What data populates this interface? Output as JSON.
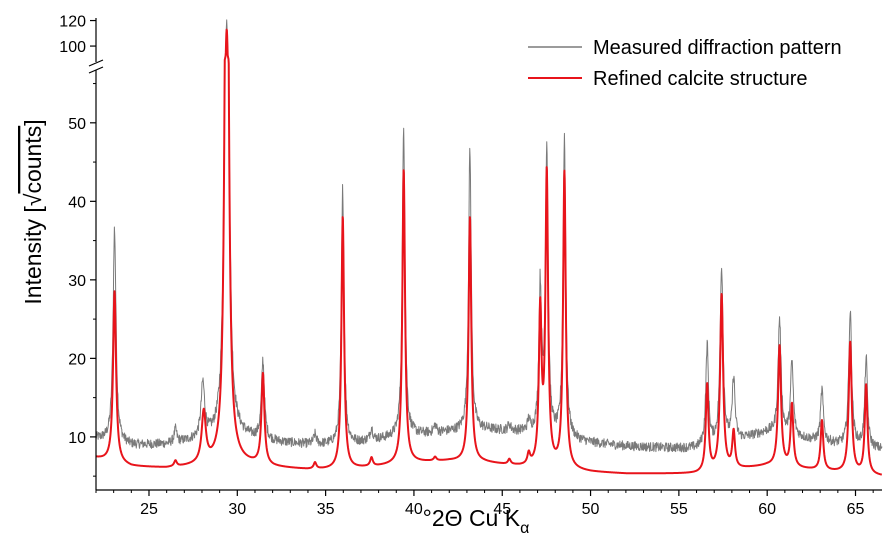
{
  "chart_data": {
    "type": "line",
    "title": "",
    "xlabel": {
      "prefix": "°2Θ Cu K",
      "subscript": "α"
    },
    "ylabel": {
      "prefix": "Intensity [",
      "sqrt": "√",
      "unit": "counts",
      "suffix": "]"
    },
    "xlim": [
      22,
      66.5
    ],
    "ylim": [
      4,
      58
    ],
    "y_break": {
      "upper_range": [
        93,
        122
      ],
      "upper_ticks": [
        100,
        120
      ]
    },
    "x_ticks": [
      25,
      30,
      35,
      40,
      45,
      50,
      55,
      60,
      65
    ],
    "y_ticks": [
      10,
      20,
      30,
      40,
      50
    ],
    "legend": {
      "position": "top-right",
      "entries": [
        "Measured diffraction pattern",
        "Refined calcite structure"
      ]
    },
    "colors": {
      "measured": "#7a7a7a",
      "refined": "#e8141b"
    },
    "baseline": {
      "measured": [
        [
          22,
          9.8
        ],
        [
          24,
          8.9
        ],
        [
          26,
          9.0
        ],
        [
          28,
          9.6
        ],
        [
          30,
          10.0
        ],
        [
          32,
          9.3
        ],
        [
          34,
          9.0
        ],
        [
          36,
          8.9
        ],
        [
          38,
          9.6
        ],
        [
          40,
          10.2
        ],
        [
          42,
          10.6
        ],
        [
          44,
          10.9
        ],
        [
          46,
          10.6
        ],
        [
          48,
          9.8
        ],
        [
          50,
          9.2
        ],
        [
          52,
          8.8
        ],
        [
          54,
          8.6
        ],
        [
          56,
          8.5
        ],
        [
          58,
          9.4
        ],
        [
          60,
          10.6
        ],
        [
          62,
          9.8
        ],
        [
          64,
          9.0
        ],
        [
          66.5,
          8.4
        ]
      ],
      "refined": [
        [
          22,
          7.3
        ],
        [
          24,
          6.2
        ],
        [
          26,
          6.0
        ],
        [
          28,
          6.3
        ],
        [
          30,
          6.7
        ],
        [
          32,
          6.1
        ],
        [
          34,
          5.8
        ],
        [
          36,
          5.8
        ],
        [
          38,
          6.2
        ],
        [
          40,
          6.7
        ],
        [
          42,
          6.9
        ],
        [
          44,
          6.7
        ],
        [
          46,
          6.2
        ],
        [
          48,
          5.9
        ],
        [
          50,
          5.5
        ],
        [
          52,
          5.3
        ],
        [
          54,
          5.3
        ],
        [
          56,
          5.3
        ],
        [
          58,
          5.8
        ],
        [
          60,
          6.3
        ],
        [
          62,
          5.9
        ],
        [
          64,
          5.5
        ],
        [
          66.5,
          5.0
        ]
      ]
    },
    "series": [
      {
        "name": "Measured diffraction pattern",
        "role": "measured",
        "peaks": [
          {
            "x": 23.05,
            "h": 36.5,
            "w": 0.1
          },
          {
            "x": 26.5,
            "h": 10.8,
            "w": 0.09
          },
          {
            "x": 28.05,
            "h": 16.5,
            "w": 0.12
          },
          {
            "x": 29.4,
            "h": 119,
            "w": 0.11
          },
          {
            "x": 31.45,
            "h": 19.5,
            "w": 0.1
          },
          {
            "x": 34.4,
            "h": 10.2,
            "w": 0.09
          },
          {
            "x": 35.97,
            "h": 41.5,
            "w": 0.09
          },
          {
            "x": 37.6,
            "h": 11.0,
            "w": 0.09
          },
          {
            "x": 39.42,
            "h": 49.5,
            "w": 0.09
          },
          {
            "x": 41.2,
            "h": 11.4,
            "w": 0.09
          },
          {
            "x": 43.17,
            "h": 46.5,
            "w": 0.09
          },
          {
            "x": 45.4,
            "h": 11.5,
            "w": 0.09
          },
          {
            "x": 46.5,
            "h": 11.8,
            "w": 0.09
          },
          {
            "x": 47.15,
            "h": 28.5,
            "w": 0.09
          },
          {
            "x": 47.52,
            "h": 46.5,
            "w": 0.09
          },
          {
            "x": 48.52,
            "h": 48.0,
            "w": 0.09
          },
          {
            "x": 56.6,
            "h": 21.5,
            "w": 0.09
          },
          {
            "x": 57.42,
            "h": 31.8,
            "w": 0.1
          },
          {
            "x": 58.1,
            "h": 17.5,
            "w": 0.09
          },
          {
            "x": 60.7,
            "h": 25.0,
            "w": 0.1
          },
          {
            "x": 61.4,
            "h": 19.5,
            "w": 0.09
          },
          {
            "x": 63.1,
            "h": 16.0,
            "w": 0.09
          },
          {
            "x": 64.7,
            "h": 26.0,
            "w": 0.1
          },
          {
            "x": 65.6,
            "h": 20.0,
            "w": 0.09
          }
        ]
      },
      {
        "name": "Refined calcite structure",
        "role": "refined",
        "peaks": [
          {
            "x": 23.05,
            "h": 28.5,
            "w": 0.1
          },
          {
            "x": 26.5,
            "h": 6.8,
            "w": 0.09
          },
          {
            "x": 28.1,
            "h": 12.8,
            "w": 0.14
          },
          {
            "x": 29.4,
            "h": 113,
            "w": 0.11
          },
          {
            "x": 31.45,
            "h": 17.8,
            "w": 0.1
          },
          {
            "x": 34.4,
            "h": 6.6,
            "w": 0.09
          },
          {
            "x": 35.97,
            "h": 38.0,
            "w": 0.09
          },
          {
            "x": 37.6,
            "h": 7.2,
            "w": 0.09
          },
          {
            "x": 39.42,
            "h": 44.0,
            "w": 0.09
          },
          {
            "x": 41.2,
            "h": 7.3,
            "w": 0.09
          },
          {
            "x": 43.17,
            "h": 38.0,
            "w": 0.09
          },
          {
            "x": 45.4,
            "h": 7.0,
            "w": 0.09
          },
          {
            "x": 46.5,
            "h": 7.5,
            "w": 0.09
          },
          {
            "x": 47.15,
            "h": 25.5,
            "w": 0.09
          },
          {
            "x": 47.52,
            "h": 43.0,
            "w": 0.09
          },
          {
            "x": 48.52,
            "h": 43.5,
            "w": 0.09
          },
          {
            "x": 56.6,
            "h": 16.5,
            "w": 0.09
          },
          {
            "x": 57.42,
            "h": 28.0,
            "w": 0.1
          },
          {
            "x": 58.1,
            "h": 10.5,
            "w": 0.09
          },
          {
            "x": 60.7,
            "h": 21.5,
            "w": 0.1
          },
          {
            "x": 61.4,
            "h": 14.0,
            "w": 0.09
          },
          {
            "x": 63.1,
            "h": 12.0,
            "w": 0.09
          },
          {
            "x": 64.7,
            "h": 22.0,
            "w": 0.1
          },
          {
            "x": 65.6,
            "h": 16.5,
            "w": 0.09
          }
        ]
      }
    ]
  }
}
